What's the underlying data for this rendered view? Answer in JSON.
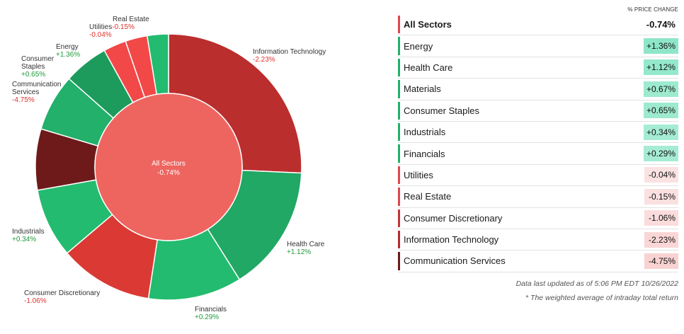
{
  "chart_data": {
    "type": "pie",
    "center": {
      "label": "All Sectors",
      "value": "-0.74%"
    },
    "outer_slices": [
      {
        "name": "Information Technology",
        "label_lines": [
          "Information Technology"
        ],
        "change": "-2.23%",
        "weight": 26.0,
        "color": "#bb2e2e"
      },
      {
        "name": "Health Care",
        "label_lines": [
          "Health Care"
        ],
        "change": "+1.12%",
        "weight": 15.5,
        "color": "#20a864"
      },
      {
        "name": "Financials",
        "label_lines": [
          "Financials"
        ],
        "change": "+0.29%",
        "weight": 11.5,
        "color": "#23bb6f"
      },
      {
        "name": "Consumer Discretionary",
        "label_lines": [
          "Consumer Discretionary"
        ],
        "change": "-1.06%",
        "weight": 11.5,
        "color": "#da3a33"
      },
      {
        "name": "Industrials",
        "label_lines": [
          "Industrials"
        ],
        "change": "+0.34%",
        "weight": 8.5,
        "color": "#23bb6f"
      },
      {
        "name": "Communication Services",
        "label_lines": [
          "Communication",
          "Services"
        ],
        "change": "-4.75%",
        "weight": 7.5,
        "color": "#6e1a1a"
      },
      {
        "name": "Consumer Staples",
        "label_lines": [
          "Consumer",
          "Staples"
        ],
        "change": "+0.65%",
        "weight": 7.0,
        "color": "#22b06b"
      },
      {
        "name": "Energy",
        "label_lines": [
          "Energy"
        ],
        "change": "+1.36%",
        "weight": 5.5,
        "color": "#1d9b5c"
      },
      {
        "name": "Utilities",
        "label_lines": [
          "Utilities"
        ],
        "change": "-0.04%",
        "weight": 2.8,
        "color": "#f24848"
      },
      {
        "name": "Real Estate",
        "label_lines": [
          "Real Estate"
        ],
        "change": "-0.15%",
        "weight": 2.7,
        "color": "#f24848"
      },
      {
        "name": "Materials",
        "label_lines": [],
        "change": "+0.67%",
        "weight": 2.6,
        "color": "#23bb6f"
      }
    ]
  },
  "table": {
    "column_header": "% PRICE CHANGE",
    "summary": {
      "name": "All Sectors",
      "value": "-0.74%",
      "bar_color": "#e04848"
    },
    "rows": [
      {
        "name": "Energy",
        "value": "+1.36%",
        "bar_color": "#22b06b",
        "bg": "#8ee6c8"
      },
      {
        "name": "Health Care",
        "value": "+1.12%",
        "bar_color": "#22b06b",
        "bg": "#94e8cc"
      },
      {
        "name": "Materials",
        "value": "+0.67%",
        "bar_color": "#22b06b",
        "bg": "#9deacf"
      },
      {
        "name": "Consumer Staples",
        "value": "+0.65%",
        "bar_color": "#22b06b",
        "bg": "#9deacf"
      },
      {
        "name": "Industrials",
        "value": "+0.34%",
        "bar_color": "#22b06b",
        "bg": "#a6ecd4"
      },
      {
        "name": "Financials",
        "value": "+0.29%",
        "bar_color": "#22b06b",
        "bg": "#a6ecd4"
      },
      {
        "name": "Utilities",
        "value": "-0.04%",
        "bar_color": "#e04848",
        "bg": "#fbe2e2"
      },
      {
        "name": "Real Estate",
        "value": "-0.15%",
        "bar_color": "#e04848",
        "bg": "#fbe0e0"
      },
      {
        "name": "Consumer Discretionary",
        "value": "-1.06%",
        "bar_color": "#c73535",
        "bg": "#fbdcdc"
      },
      {
        "name": "Information Technology",
        "value": "-2.23%",
        "bar_color": "#b32e2e",
        "bg": "#fad6d6"
      },
      {
        "name": "Communication Services",
        "value": "-4.75%",
        "bar_color": "#6e1a1a",
        "bg": "#f9d2d2"
      }
    ]
  },
  "footer": {
    "updated": "Data last updated as of 5:06 PM EDT 10/26/2022",
    "note": "* The weighted average of intraday total return"
  }
}
